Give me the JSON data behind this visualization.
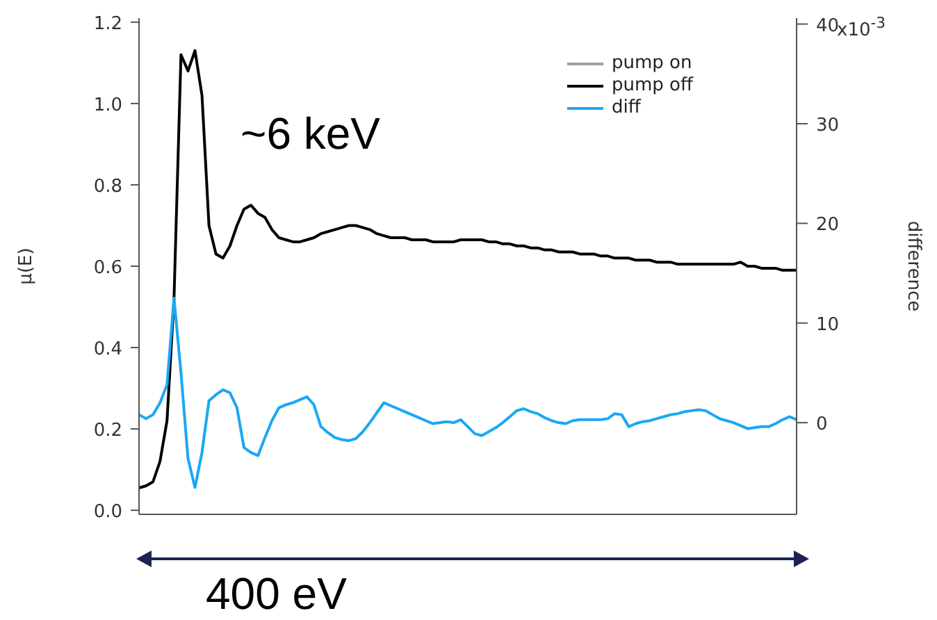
{
  "chart_data": {
    "type": "line",
    "ylabel": "μ(E)",
    "y2label": "difference",
    "annotations": [
      "~6 keV",
      "400 eV",
      "x10$^{-3}$"
    ],
    "categories": [
      null,
      null,
      null,
      null,
      null,
      null,
      null,
      null,
      null,
      null,
      null,
      null,
      null,
      null,
      null,
      null,
      null,
      null,
      null,
      null,
      null,
      null,
      null,
      null,
      null,
      null,
      null,
      null,
      null,
      null,
      null,
      null,
      null,
      null,
      null,
      null,
      null,
      null,
      null,
      null,
      null,
      null,
      null,
      null,
      null,
      null,
      null,
      null,
      null,
      null,
      null,
      null,
      null,
      null,
      null,
      null,
      null,
      null,
      null,
      null,
      null,
      null,
      null,
      null,
      null,
      null,
      null,
      null,
      null,
      null,
      null,
      null,
      null,
      null,
      null,
      null,
      null,
      null,
      null,
      null,
      null,
      null,
      null,
      null,
      null,
      null,
      null,
      null,
      null,
      null,
      null,
      null,
      null,
      null,
      null
    ],
    "series": [
      {
        "name": "pump on",
        "color": "#a0a0a0",
        "values": [
          null,
          null,
          null,
          null,
          null,
          null,
          null,
          null,
          null,
          null,
          null,
          null,
          null,
          null,
          null,
          null,
          null,
          null,
          null,
          null,
          null,
          null,
          null,
          null,
          null,
          null,
          null,
          null,
          null,
          null,
          null,
          null,
          null,
          null,
          null,
          null,
          null,
          null,
          null,
          null,
          null,
          null,
          null,
          null,
          null,
          null,
          null,
          null,
          null,
          null,
          null,
          null,
          null,
          null,
          null,
          null,
          null,
          null,
          null,
          null,
          null,
          null,
          null,
          null,
          null,
          null,
          null,
          null,
          null,
          null,
          null,
          null,
          null,
          null,
          null,
          null,
          null,
          null,
          null,
          null,
          null,
          null,
          null,
          null,
          null,
          null,
          null,
          null,
          null,
          null,
          null,
          null,
          null,
          null,
          null
        ]
      },
      {
        "name": "pump off",
        "color": "#000000",
        "values": [
          0.055,
          0.06,
          0.07,
          0.12,
          0.22,
          0.52,
          1.12,
          1.08,
          1.13,
          1.02,
          0.7,
          0.63,
          0.62,
          0.65,
          0.7,
          0.74,
          0.75,
          0.73,
          0.72,
          0.69,
          0.67,
          0.665,
          0.66,
          0.66,
          0.665,
          0.67,
          0.68,
          0.685,
          0.69,
          0.695,
          0.7,
          0.7,
          0.695,
          0.69,
          0.68,
          0.675,
          0.67,
          0.67,
          0.67,
          0.665,
          0.665,
          0.665,
          0.66,
          0.66,
          0.66,
          0.66,
          0.665,
          0.665,
          0.665,
          0.665,
          0.66,
          0.66,
          0.655,
          0.655,
          0.65,
          0.65,
          0.645,
          0.645,
          0.64,
          0.64,
          0.635,
          0.635,
          0.635,
          0.63,
          0.63,
          0.63,
          0.625,
          0.625,
          0.62,
          0.62,
          0.62,
          0.615,
          0.615,
          0.615,
          0.61,
          0.61,
          0.61,
          0.605,
          0.605,
          0.605,
          0.605,
          0.605,
          0.605,
          0.605,
          0.605,
          0.605,
          0.61,
          0.6,
          0.6,
          0.595,
          0.595,
          0.595,
          0.59,
          0.59,
          0.59
        ]
      },
      {
        "name": "diff",
        "color": "#1aa8f4",
        "axis": "y2",
        "values": [
          0.8,
          0.4,
          0.8,
          2.0,
          3.8,
          12.5,
          5.0,
          -3.6,
          -6.5,
          -3.0,
          2.2,
          2.8,
          3.3,
          3.0,
          1.5,
          -2.5,
          -3.0,
          -3.3,
          -1.5,
          0.2,
          1.5,
          1.8,
          2.0,
          2.3,
          2.6,
          1.8,
          -0.4,
          -1.0,
          -1.5,
          -1.7,
          -1.8,
          -1.6,
          -0.9,
          0.0,
          1.0,
          2.0,
          1.7,
          1.4,
          1.1,
          0.8,
          0.5,
          0.2,
          -0.1,
          0.0,
          0.1,
          0.0,
          0.3,
          -0.4,
          -1.1,
          -1.3,
          -0.9,
          -0.5,
          0.0,
          0.6,
          1.2,
          1.4,
          1.1,
          0.9,
          0.5,
          0.2,
          0.0,
          -0.1,
          0.2,
          0.3,
          0.3,
          0.3,
          0.3,
          0.4,
          0.9,
          0.8,
          -0.4,
          -0.1,
          0.1,
          0.2,
          0.4,
          0.6,
          0.8,
          0.9,
          1.1,
          1.2,
          1.3,
          1.2,
          0.8,
          0.4,
          0.2,
          0.0,
          -0.3,
          -0.6,
          -0.5,
          -0.4,
          -0.4,
          -0.1,
          0.3,
          0.6,
          0.3
        ]
      }
    ],
    "ylim": [
      -0.01,
      1.21
    ],
    "yticks": [
      {
        "value": 0,
        "label": "0.0"
      },
      0.2,
      0.4,
      0.6,
      0.8,
      {
        "value": 1,
        "label": "1.0"
      },
      1.2
    ],
    "y2lim": [
      -9.2,
      40.6
    ],
    "y2ticks": [
      0,
      10,
      20,
      30,
      40
    ],
    "tick_labels": "y",
    "grid": false,
    "legend": "top right",
    "marker": "none",
    "line_style": "solid"
  }
}
